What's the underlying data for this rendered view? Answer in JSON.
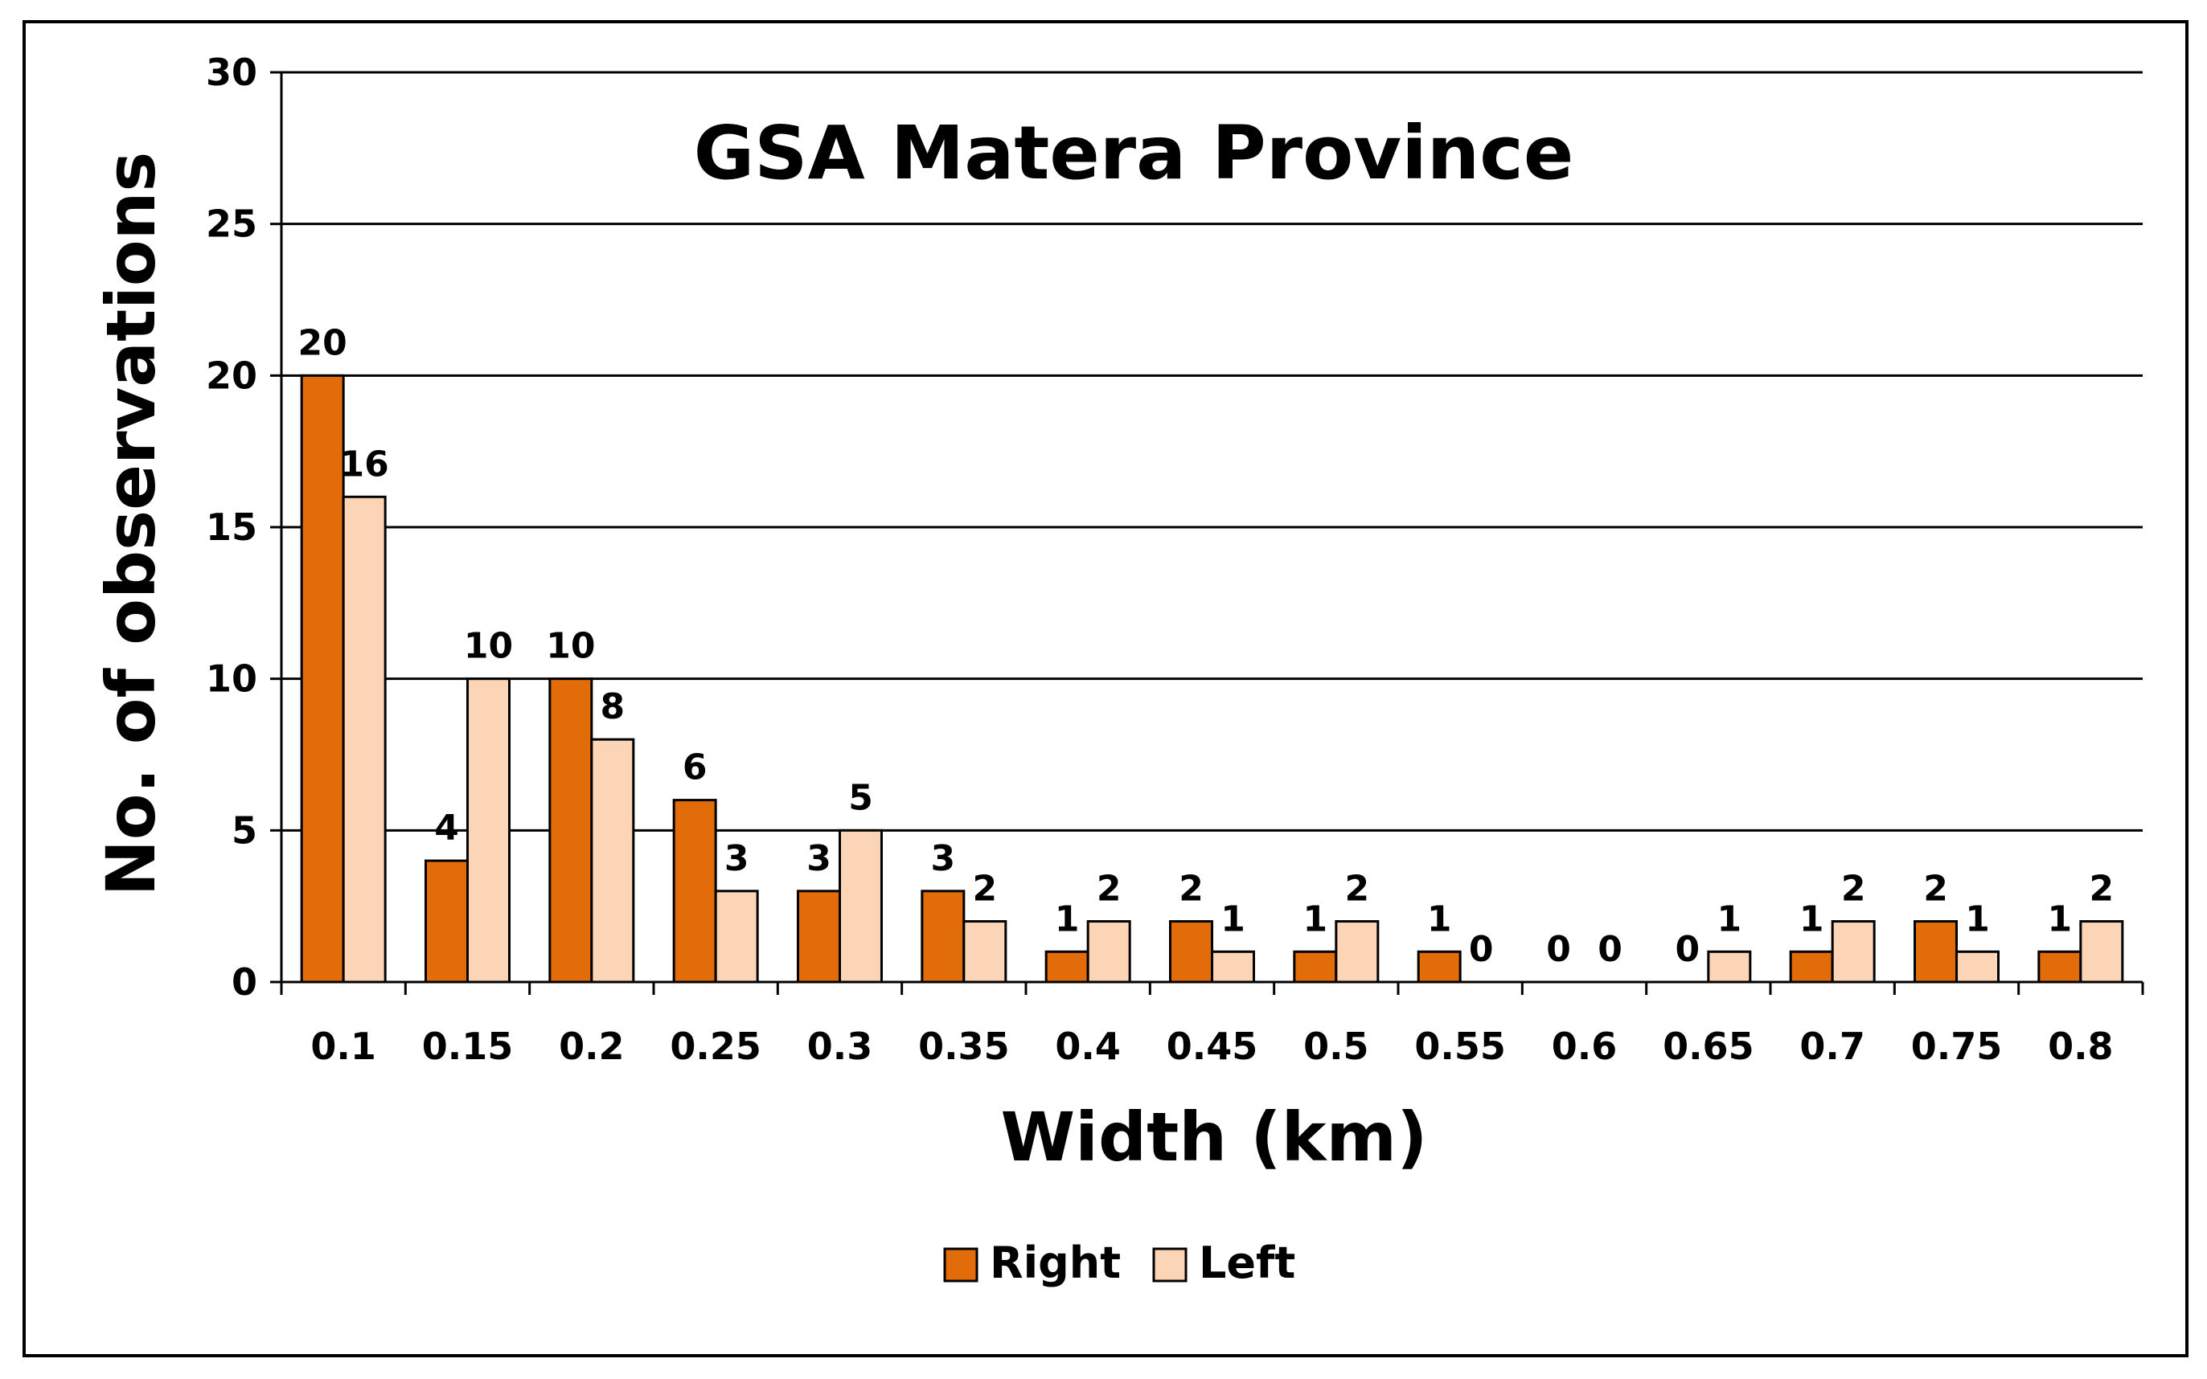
{
  "chart_data": {
    "type": "bar",
    "title": "GSA Matera Province",
    "xlabel": "Width (km)",
    "ylabel": "No. of observations",
    "categories": [
      "0.1",
      "0.15",
      "0.2",
      "0.25",
      "0.3",
      "0.35",
      "0.4",
      "0.45",
      "0.5",
      "0.55",
      "0.6",
      "0.65",
      "0.7",
      "0.75",
      "0.8"
    ],
    "series": [
      {
        "name": "Right",
        "color": "#E36C0A",
        "values": [
          20,
          4,
          10,
          6,
          3,
          3,
          1,
          2,
          1,
          1,
          0,
          0,
          1,
          2,
          1
        ]
      },
      {
        "name": "Left",
        "color": "#FBD5B5",
        "values": [
          16,
          10,
          8,
          3,
          5,
          2,
          2,
          1,
          2,
          0,
          0,
          1,
          2,
          1,
          2
        ]
      }
    ],
    "ylim": [
      0,
      30
    ],
    "yticks": [
      0,
      5,
      10,
      15,
      20,
      25,
      30
    ],
    "grid": true,
    "legend": "bottom-center",
    "data_labels": true
  }
}
